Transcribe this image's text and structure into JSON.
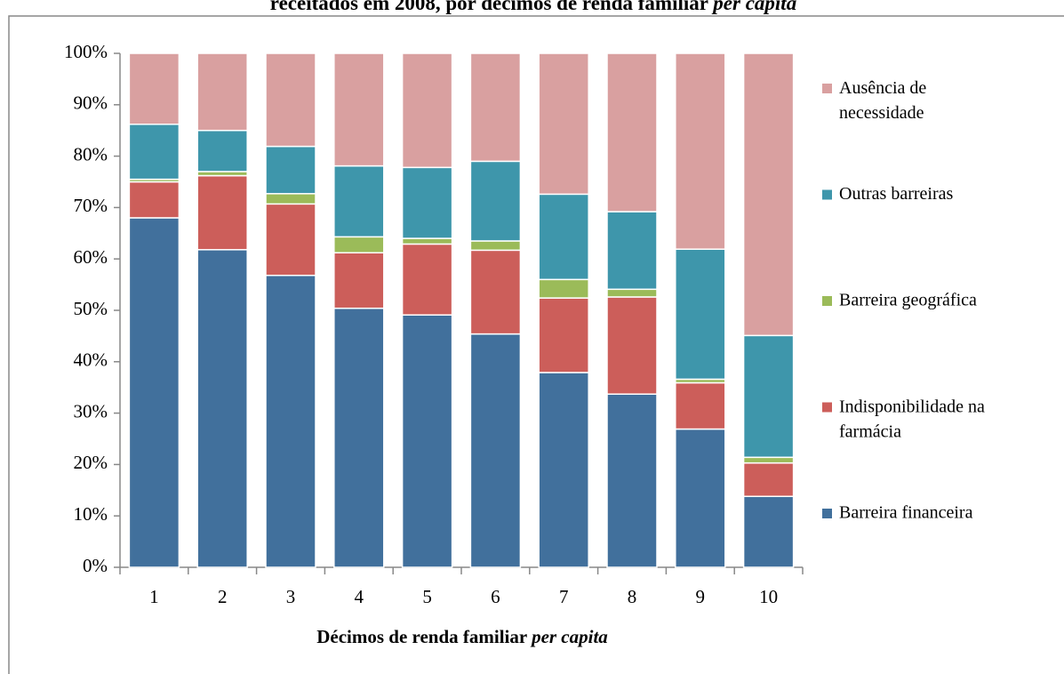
{
  "chart_data": {
    "type": "stacked_bar",
    "title": "receitados em 2008, por décimos de renda familiar",
    "title_italic": "per capita",
    "x_label": "Décimos de renda familiar",
    "x_label_italic": "per capita",
    "categories": [
      "1",
      "2",
      "3",
      "4",
      "5",
      "6",
      "7",
      "8",
      "9",
      "10"
    ],
    "series": [
      {
        "name": "Barreira financeira",
        "color": "#41709c",
        "values": [
          68,
          61.8,
          56.8,
          50.4,
          49.1,
          45.4,
          37.9,
          33.7,
          26.9,
          13.8
        ]
      },
      {
        "name": "Indisponibilidade na farmácia",
        "color": "#cc5e5a",
        "values": [
          7,
          14.4,
          13.9,
          10.8,
          13.8,
          16.3,
          14.5,
          18.9,
          9,
          6.5
        ]
      },
      {
        "name": "Barreira geográfica",
        "color": "#9bbb59",
        "values": [
          0.5,
          0.8,
          2,
          3.1,
          1.1,
          1.8,
          3.6,
          1.5,
          0.7,
          1.1
        ]
      },
      {
        "name": "Outras barreiras",
        "color": "#3e96ab",
        "values": [
          10.7,
          8,
          9.2,
          13.8,
          13.8,
          15.5,
          16.6,
          15.1,
          25.3,
          23.7
        ]
      },
      {
        "name": "Ausência de necessidade",
        "color": "#d9a0a0",
        "values": [
          13.8,
          15,
          18.1,
          21.9,
          22.2,
          21,
          27.4,
          30.8,
          38.1,
          54.9
        ]
      }
    ],
    "ylim": [
      0,
      100
    ],
    "yticks": [
      {
        "value": 0,
        "label": "0%"
      },
      {
        "value": 10,
        "label": "10%"
      },
      {
        "value": 20,
        "label": "20%"
      },
      {
        "value": 30,
        "label": "30%"
      },
      {
        "value": 40,
        "label": "40%"
      },
      {
        "value": 50,
        "label": "50%"
      },
      {
        "value": 60,
        "label": "60%"
      },
      {
        "value": 70,
        "label": "70%"
      },
      {
        "value": 80,
        "label": "80%"
      },
      {
        "value": 90,
        "label": "90%"
      },
      {
        "value": 100,
        "label": "100%"
      }
    ],
    "legend": "right"
  }
}
